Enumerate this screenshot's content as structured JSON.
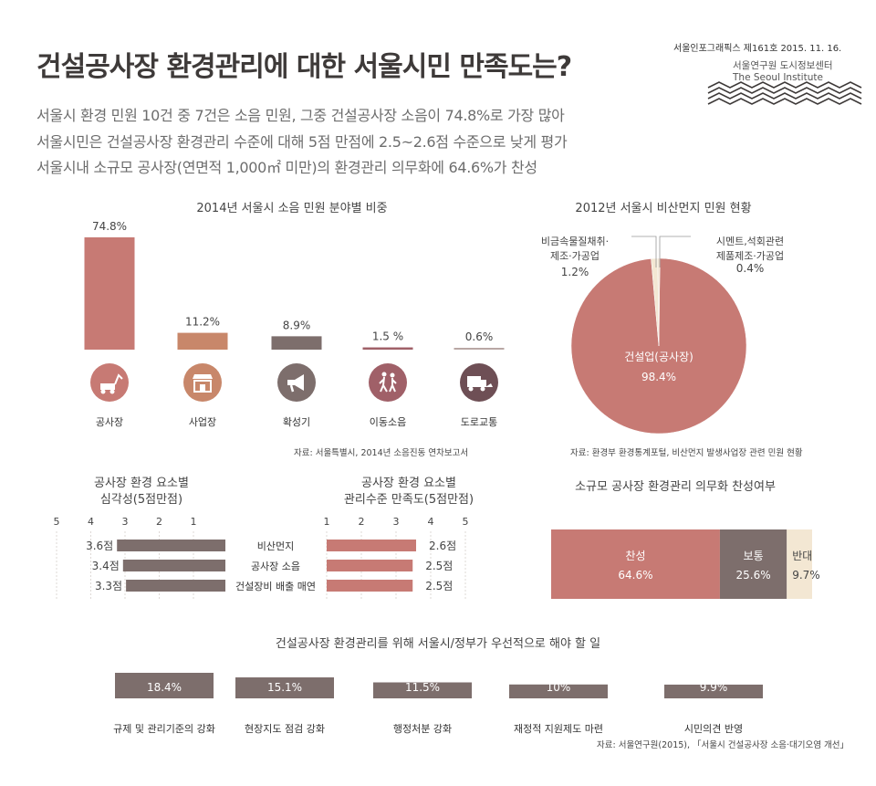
{
  "header": {
    "title": "건설공사장 환경관리에 대한 서울시민 만족도는?",
    "subtitles": [
      "서울시 환경 민원 10건 중 7건은 소음 민원, 그중 건설공사장 소음이 74.8%로 가장 많아",
      "서울시민은 건설공사장 환경관리 수준에 대해 5점 만점에 2.5~2.6점 수준으로 낮게 평가",
      "서울시내 소규모 공사장(연면적 1,000㎡ 미만)의 환경관리 의무화에 64.6%가 찬성"
    ],
    "issue": "서울인포그래픽스 제161호 2015. 11. 16.",
    "institute_ko": "서울연구원 도시정보센터",
    "institute_en": "The Seoul Institute"
  },
  "colors": {
    "rose": "#c77a74",
    "tan": "#c8876a",
    "taupe": "#7d6e6c",
    "mauve": "#a06068",
    "wine": "#6e4f55",
    "cream": "#f3e7d3"
  },
  "chart_data": [
    {
      "type": "bar",
      "title": "2014년 서울시 소음 민원 분야별 비중",
      "categories": [
        "공사장",
        "사업장",
        "확성기",
        "이동소음",
        "도로교통"
      ],
      "values": [
        74.8,
        11.2,
        8.9,
        1.5,
        0.6
      ],
      "value_labels": [
        "74.8%",
        "11.2%",
        "8.9%",
        "1.5 %",
        "0.6%"
      ],
      "icons": [
        "excavator-icon",
        "shop-icon",
        "megaphone-icon",
        "walking-people-icon",
        "truck-car-icon"
      ],
      "source": "자료: 서울특별시, 2014년 소음진동 연차보고서"
    },
    {
      "type": "pie",
      "title": "2012년 서울시 비산먼지 민원 현황",
      "labels": [
        "건설업(공사장)",
        "비금속물질채취·제조·가공업",
        "시멘트,석회관련 제품제조·가공업"
      ],
      "values": [
        98.4,
        1.2,
        0.4
      ],
      "big_label": "건설업(공사장)",
      "big_value": "98.4%",
      "left_label_1": "비금속물질채취·",
      "left_label_2": "제조·가공업",
      "left_value": "1.2%",
      "right_label_1": "시멘트,석회관련",
      "right_label_2": "제품제조·가공업",
      "right_value": "0.4%",
      "source": "자료: 환경부 환경통계포털, 비산먼지 발생사업장 관련 민원 현황"
    },
    {
      "type": "bar",
      "title_1": "공사장 환경 요소별",
      "title_2": "심각성(5점만점)",
      "categories": [
        "비산먼지",
        "공사장 소음",
        "건설장비 배출 매연"
      ],
      "values": [
        3.6,
        3.4,
        3.3
      ],
      "value_labels": [
        "3.6점",
        "3.4점",
        "3.3점"
      ],
      "ticks": [
        "5",
        "4",
        "3",
        "2",
        "1"
      ],
      "xlim": [
        1,
        5
      ]
    },
    {
      "type": "bar",
      "title_1": "공사장 환경 요소별",
      "title_2": "관리수준 만족도(5점만점)",
      "categories": [
        "비산먼지",
        "공사장 소음",
        "건설장비 배출 매연"
      ],
      "values": [
        2.6,
        2.5,
        2.5
      ],
      "value_labels": [
        "2.6점",
        "2.5점",
        "2.5점"
      ],
      "ticks": [
        "1",
        "2",
        "3",
        "4",
        "5"
      ],
      "xlim": [
        1,
        5
      ]
    },
    {
      "type": "bar",
      "title": "소규모 공사장 환경관리 의무화 찬성여부",
      "stacked": true,
      "categories": [
        "찬성",
        "보통",
        "반대"
      ],
      "values": [
        64.6,
        25.6,
        9.7
      ],
      "value_labels": [
        "64.6%",
        "25.6%",
        "9.7%"
      ]
    },
    {
      "type": "bar",
      "title": "건설공사장 환경관리를 위해 서울시/정부가 우선적으로 해야 할 일",
      "categories": [
        "규제 및 관리기준의 강화",
        "현장지도 점검 강화",
        "행정처분 강화",
        "재정적 지원제도 마련",
        "시민의견 반영"
      ],
      "values": [
        18.4,
        15.1,
        11.5,
        10,
        9.9
      ],
      "value_labels": [
        "18.4%",
        "15.1%",
        "11.5%",
        "10%",
        "9.9%"
      ],
      "source": "자료: 서울연구원(2015), 「서울시 건설공사장 소음·대기오염 개선」"
    }
  ]
}
